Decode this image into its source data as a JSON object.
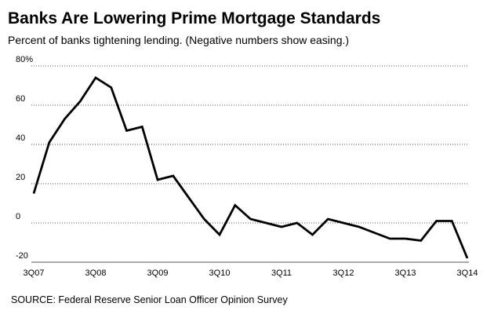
{
  "chart_data": {
    "type": "line",
    "title": "Banks Are Lowering Prime Mortgage Standards",
    "subtitle": "Percent of banks tightening lending. (Negative numbers show easing.)",
    "source": "SOURCE: Federal Reserve Senior Loan Officer Opinion Survey",
    "categories": [
      "3Q07",
      null,
      null,
      null,
      "3Q08",
      null,
      null,
      null,
      "3Q09",
      null,
      null,
      null,
      "3Q10",
      null,
      null,
      null,
      "3Q11",
      null,
      null,
      null,
      "3Q12",
      null,
      null,
      null,
      "3Q13",
      null,
      null,
      null,
      "3Q14"
    ],
    "values": [
      15,
      41,
      53,
      62,
      74,
      69,
      47,
      49,
      22,
      24,
      13,
      2,
      -6,
      9,
      2,
      0,
      -2,
      0,
      -6,
      2,
      0,
      -2,
      -5,
      -8,
      -8,
      -9,
      1,
      1,
      -18
    ],
    "color": "#000000",
    "ylim": [
      -20,
      80
    ],
    "yticks": [
      -20,
      0,
      20,
      40,
      60,
      {
        "value": 80,
        "label": "80%"
      }
    ],
    "grid": true
  }
}
